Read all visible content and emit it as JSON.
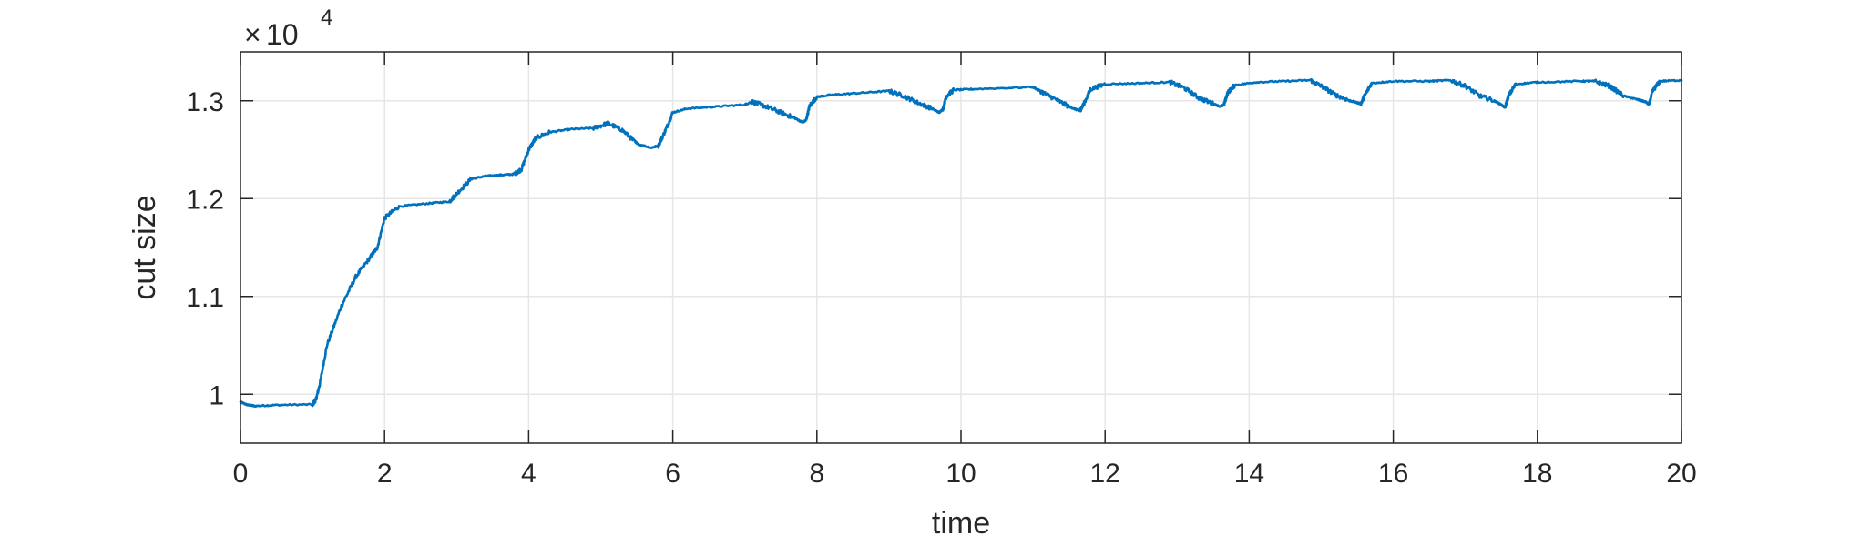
{
  "chart_data": {
    "type": "line",
    "title": "",
    "xlabel": "time",
    "ylabel": "cut size",
    "xlim": [
      0,
      20
    ],
    "ylim": [
      9500,
      13500
    ],
    "x_ticks": [
      0,
      2,
      4,
      6,
      8,
      10,
      12,
      14,
      16,
      18,
      20
    ],
    "y_ticks": [
      10000,
      11000,
      12000,
      13000
    ],
    "x_tick_labels": [
      "0",
      "2",
      "4",
      "6",
      "8",
      "10",
      "12",
      "14",
      "16",
      "18",
      "20"
    ],
    "y_tick_labels": [
      "1",
      "1.1",
      "1.2",
      "1.3"
    ],
    "y_multiplier": {
      "base": "10",
      "exponent": "4"
    },
    "grid": true,
    "line_color": "#0072BD",
    "grid_color": "#e6e6e6",
    "axis_color": "#262626",
    "series": [
      {
        "name": "cut size",
        "x": [
          0,
          0.1,
          0.2,
          0.5,
          1.0,
          1.05,
          1.1,
          1.2,
          1.4,
          1.6,
          1.8,
          1.9,
          2.0,
          2.2,
          2.6,
          2.9,
          3.0,
          3.2,
          3.4,
          3.6,
          3.8,
          3.9,
          4.0,
          4.1,
          4.3,
          4.6,
          4.9,
          5.1,
          5.3,
          5.5,
          5.7,
          5.8,
          5.9,
          6.0,
          6.2,
          6.6,
          7.0,
          7.1,
          7.3,
          7.5,
          7.7,
          7.8,
          7.85,
          7.9,
          8.0,
          8.2,
          8.6,
          9.0,
          9.2,
          9.4,
          9.6,
          9.7,
          9.75,
          9.8,
          9.9,
          10.2,
          11.0,
          11.1,
          11.3,
          11.5,
          11.6,
          11.65,
          11.7,
          11.8,
          12.0,
          12.5,
          12.9,
          13.1,
          13.3,
          13.5,
          13.6,
          13.65,
          13.7,
          13.8,
          14.1,
          14.5,
          14.85,
          15.0,
          15.2,
          15.4,
          15.5,
          15.55,
          15.6,
          15.7,
          16.0,
          16.5,
          16.8,
          17.0,
          17.2,
          17.4,
          17.5,
          17.55,
          17.6,
          17.7,
          18.0,
          18.6,
          18.8,
          19.0,
          19.2,
          19.4,
          19.5,
          19.55,
          19.6,
          19.7,
          20.0
        ],
        "y": [
          9920,
          9890,
          9880,
          9890,
          9895,
          9950,
          10100,
          10500,
          10900,
          11200,
          11400,
          11500,
          11800,
          11920,
          11950,
          11970,
          12050,
          12200,
          12230,
          12240,
          12250,
          12300,
          12500,
          12620,
          12680,
          12710,
          12720,
          12770,
          12700,
          12560,
          12520,
          12540,
          12700,
          12880,
          12920,
          12940,
          12960,
          12990,
          12940,
          12880,
          12820,
          12780,
          12800,
          12950,
          13040,
          13060,
          13080,
          13100,
          13050,
          12980,
          12920,
          12880,
          12920,
          13050,
          13110,
          13120,
          13140,
          13100,
          13020,
          12940,
          12910,
          12900,
          12960,
          13120,
          13170,
          13180,
          13190,
          13130,
          13030,
          12970,
          12940,
          12960,
          13080,
          13160,
          13190,
          13200,
          13210,
          13150,
          13060,
          13000,
          12980,
          12970,
          13050,
          13180,
          13200,
          13200,
          13210,
          13150,
          13050,
          13000,
          12960,
          12930,
          13050,
          13170,
          13190,
          13200,
          13200,
          13150,
          13050,
          13010,
          12990,
          12960,
          13100,
          13200,
          13210
        ]
      }
    ]
  }
}
